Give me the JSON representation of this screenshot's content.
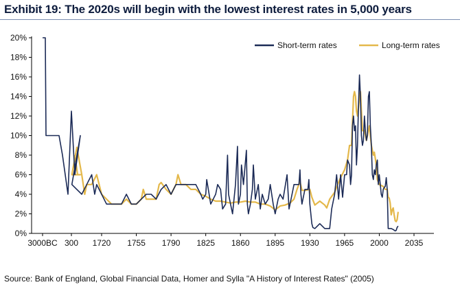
{
  "title": "Exhibit 19: The 2020s will begin with the lowest interest rates in 5,000 years",
  "source": "Source:  Bank of England, Global Financial Data, Homer and Sylla \"A History of Interest Rates\" (2005)",
  "colors": {
    "short": "#1b2a56",
    "long": "#e4b84a",
    "axis": "#000000",
    "title": "#0d1c3d"
  },
  "chart_data": {
    "type": "line",
    "title": "",
    "xlabel": "",
    "ylabel": "",
    "ylim": [
      0,
      20
    ],
    "grid": false,
    "legend_position": "top-right",
    "x_axis_note": "x-axis is categorical on the left (3000BC, 300) then linear years from about 1690 to 2035",
    "x_ticks": [
      "3000BC",
      "300",
      "1720",
      "1755",
      "1790",
      "1825",
      "1860",
      "1895",
      "1930",
      "1965",
      "2000",
      "2035"
    ],
    "y_ticks": [
      "0%",
      "2%",
      "4%",
      "6%",
      "8%",
      "10%",
      "12%",
      "14%",
      "16%",
      "18%",
      "20%"
    ],
    "series": [
      {
        "name": "Short-term rates",
        "points": [
          [
            "3000BC",
            20
          ],
          [
            "-2000",
            20
          ],
          [
            "-1800",
            10
          ],
          [
            "-1000",
            10
          ],
          [
            "-500",
            10
          ],
          [
            "-200",
            8
          ],
          [
            "0",
            6
          ],
          [
            "100",
            5
          ],
          [
            "200",
            4
          ],
          [
            "300",
            12.5
          ],
          [
            "400",
            6
          ],
          [
            "500",
            8
          ],
          [
            "600",
            10
          ],
          [
            1690,
            5
          ],
          [
            1695,
            4.5
          ],
          [
            1700,
            4
          ],
          [
            1705,
            5
          ],
          [
            1710,
            6
          ],
          [
            1713,
            4
          ],
          [
            1715,
            5
          ],
          [
            1720,
            4
          ],
          [
            1725,
            3
          ],
          [
            1730,
            3
          ],
          [
            1735,
            3
          ],
          [
            1740,
            3
          ],
          [
            1745,
            4
          ],
          [
            1750,
            3
          ],
          [
            1755,
            3
          ],
          [
            1760,
            3.5
          ],
          [
            1765,
            4
          ],
          [
            1770,
            4
          ],
          [
            1775,
            3.5
          ],
          [
            1780,
            4.5
          ],
          [
            1785,
            5
          ],
          [
            1790,
            4
          ],
          [
            1795,
            5
          ],
          [
            1800,
            5
          ],
          [
            1805,
            5
          ],
          [
            1810,
            5
          ],
          [
            1815,
            5
          ],
          [
            1820,
            4
          ],
          [
            1822,
            3.5
          ],
          [
            1825,
            4
          ],
          [
            1826,
            5.5
          ],
          [
            1830,
            3
          ],
          [
            1835,
            4
          ],
          [
            1837,
            5
          ],
          [
            1840,
            4.5
          ],
          [
            1842,
            2.5
          ],
          [
            1845,
            3
          ],
          [
            1847,
            8
          ],
          [
            1848,
            4
          ],
          [
            1850,
            3
          ],
          [
            1852,
            2
          ],
          [
            1855,
            5
          ],
          [
            1857,
            8.9
          ],
          [
            1858,
            3
          ],
          [
            1860,
            4
          ],
          [
            1861,
            7
          ],
          [
            1863,
            5
          ],
          [
            1866,
            8.5
          ],
          [
            1867,
            3
          ],
          [
            1868,
            2
          ],
          [
            1870,
            3
          ],
          [
            1872,
            4.5
          ],
          [
            1873,
            7
          ],
          [
            1875,
            3.5
          ],
          [
            1878,
            5
          ],
          [
            1880,
            2.5
          ],
          [
            1882,
            4
          ],
          [
            1885,
            3
          ],
          [
            1888,
            3.5
          ],
          [
            1890,
            5
          ],
          [
            1893,
            3
          ],
          [
            1895,
            2
          ],
          [
            1898,
            3.5
          ],
          [
            1900,
            4
          ],
          [
            1903,
            3.5
          ],
          [
            1907,
            6
          ],
          [
            1909,
            2.5
          ],
          [
            1911,
            3.5
          ],
          [
            1913,
            4.5
          ],
          [
            1914,
            5
          ],
          [
            1916,
            5
          ],
          [
            1917,
            5
          ],
          [
            1919,
            5
          ],
          [
            1920,
            6.5
          ],
          [
            1921,
            4
          ],
          [
            1922,
            3
          ],
          [
            1925,
            4.5
          ],
          [
            1928,
            4.5
          ],
          [
            1929,
            5.5
          ],
          [
            1930,
            3
          ],
          [
            1932,
            1
          ],
          [
            1933,
            0.6
          ],
          [
            1935,
            0.5
          ],
          [
            1940,
            1
          ],
          [
            1945,
            0.5
          ],
          [
            1950,
            0.5
          ],
          [
            1952,
            2.5
          ],
          [
            1955,
            4
          ],
          [
            1957,
            6
          ],
          [
            1959,
            3.5
          ],
          [
            1961,
            6
          ],
          [
            1963,
            3.7
          ],
          [
            1965,
            6
          ],
          [
            1967,
            6
          ],
          [
            1968,
            7.5
          ],
          [
            1970,
            7
          ],
          [
            1971,
            5
          ],
          [
            1972,
            6
          ],
          [
            1973,
            11
          ],
          [
            1974,
            12
          ],
          [
            1975,
            10.5
          ],
          [
            1976,
            11
          ],
          [
            1977,
            7
          ],
          [
            1978,
            9
          ],
          [
            1979,
            13
          ],
          [
            1980,
            16.2
          ],
          [
            1981,
            14
          ],
          [
            1982,
            10
          ],
          [
            1983,
            9
          ],
          [
            1984,
            9.5
          ],
          [
            1985,
            12
          ],
          [
            1986,
            10.5
          ],
          [
            1987,
            9.5
          ],
          [
            1988,
            10
          ],
          [
            1989,
            14
          ],
          [
            1990,
            14.5
          ],
          [
            1991,
            11
          ],
          [
            1992,
            9
          ],
          [
            1993,
            6
          ],
          [
            1994,
            5.5
          ],
          [
            1995,
            6.5
          ],
          [
            1996,
            6
          ],
          [
            1997,
            7
          ],
          [
            1998,
            7.5
          ],
          [
            1999,
            5
          ],
          [
            2000,
            6
          ],
          [
            2001,
            5
          ],
          [
            2002,
            4
          ],
          [
            2003,
            3.7
          ],
          [
            2004,
            4.5
          ],
          [
            2005,
            4.7
          ],
          [
            2006,
            4.8
          ],
          [
            2007,
            5.7
          ],
          [
            2008,
            4.5
          ],
          [
            2009,
            0.5
          ],
          [
            2010,
            0.5
          ],
          [
            2012,
            0.5
          ],
          [
            2014,
            0.4
          ],
          [
            2016,
            0.25
          ],
          [
            2017,
            0.3
          ],
          [
            2018,
            0.6
          ],
          [
            2019,
            0.75
          ]
        ]
      },
      {
        "name": "Long-term rates",
        "points": [
          [
            "400",
            8
          ],
          [
            "500",
            6
          ],
          [
            "600",
            6
          ],
          [
            1690,
            6
          ],
          [
            1695,
            8.8
          ],
          [
            1700,
            6
          ],
          [
            1703,
            4
          ],
          [
            1705,
            5
          ],
          [
            1710,
            5
          ],
          [
            1715,
            6
          ],
          [
            1720,
            4
          ],
          [
            1725,
            3.5
          ],
          [
            1730,
            3
          ],
          [
            1735,
            3
          ],
          [
            1740,
            3
          ],
          [
            1745,
            3.5
          ],
          [
            1750,
            3
          ],
          [
            1755,
            3
          ],
          [
            1760,
            3.5
          ],
          [
            1762,
            4.5
          ],
          [
            1765,
            3.5
          ],
          [
            1770,
            3.5
          ],
          [
            1775,
            3.5
          ],
          [
            1778,
            5
          ],
          [
            1780,
            5.2
          ],
          [
            1785,
            4.5
          ],
          [
            1790,
            4
          ],
          [
            1795,
            5
          ],
          [
            1797,
            6
          ],
          [
            1800,
            5
          ],
          [
            1805,
            5
          ],
          [
            1810,
            4.5
          ],
          [
            1815,
            4.5
          ],
          [
            1820,
            4
          ],
          [
            1825,
            3.8
          ],
          [
            1830,
            3.5
          ],
          [
            1835,
            3.3
          ],
          [
            1840,
            3.3
          ],
          [
            1845,
            3.2
          ],
          [
            1850,
            3.1
          ],
          [
            1855,
            3.2
          ],
          [
            1860,
            3.2
          ],
          [
            1865,
            3.3
          ],
          [
            1870,
            3.2
          ],
          [
            1875,
            3.2
          ],
          [
            1880,
            3
          ],
          [
            1885,
            3
          ],
          [
            1890,
            2.8
          ],
          [
            1895,
            2.4
          ],
          [
            1900,
            2.8
          ],
          [
            1905,
            2.9
          ],
          [
            1910,
            3.1
          ],
          [
            1914,
            3.5
          ],
          [
            1917,
            4.5
          ],
          [
            1920,
            5.3
          ],
          [
            1922,
            4.4
          ],
          [
            1925,
            4.4
          ],
          [
            1930,
            4.5
          ],
          [
            1932,
            3.7
          ],
          [
            1935,
            2.9
          ],
          [
            1940,
            3.3
          ],
          [
            1945,
            2.9
          ],
          [
            1947,
            2.6
          ],
          [
            1950,
            3.5
          ],
          [
            1955,
            4.2
          ],
          [
            1960,
            5.5
          ],
          [
            1965,
            6.5
          ],
          [
            1968,
            7.5
          ],
          [
            1970,
            9
          ],
          [
            1972,
            9
          ],
          [
            1974,
            14
          ],
          [
            1975,
            14.5
          ],
          [
            1976,
            14
          ],
          [
            1977,
            12.5
          ],
          [
            1978,
            12
          ],
          [
            1980,
            13.8
          ],
          [
            1981,
            14.5
          ],
          [
            1982,
            12.5
          ],
          [
            1983,
            10.5
          ],
          [
            1985,
            10.5
          ],
          [
            1987,
            9.5
          ],
          [
            1990,
            11
          ],
          [
            1992,
            9
          ],
          [
            1994,
            8
          ],
          [
            1995,
            8.3
          ],
          [
            1997,
            7
          ],
          [
            1998,
            5.5
          ],
          [
            2000,
            5
          ],
          [
            2002,
            4.9
          ],
          [
            2004,
            4.8
          ],
          [
            2006,
            4.5
          ],
          [
            2008,
            4.5
          ],
          [
            2009,
            3.7
          ],
          [
            2010,
            3.6
          ],
          [
            2011,
            3.1
          ],
          [
            2012,
            1.9
          ],
          [
            2013,
            2.4
          ],
          [
            2014,
            2.6
          ],
          [
            2015,
            1.9
          ],
          [
            2016,
            1.3
          ],
          [
            2017,
            1.2
          ],
          [
            2018,
            1.4
          ],
          [
            2019,
            2.2
          ]
        ]
      }
    ]
  }
}
